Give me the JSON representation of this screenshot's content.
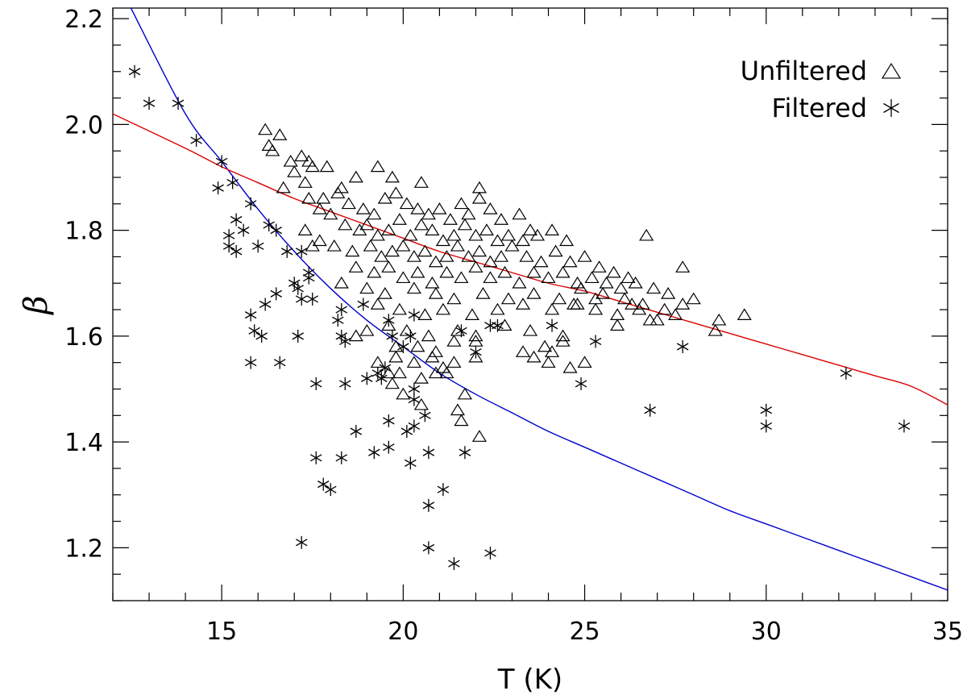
{
  "chart_data": {
    "type": "scatter",
    "xlabel": "T (K)",
    "ylabel": "β",
    "xlim": [
      12,
      35
    ],
    "ylim": [
      1.1,
      2.22
    ],
    "xticks": [
      15,
      20,
      25,
      30,
      35
    ],
    "xtick_labels": [
      "15",
      "20",
      "25",
      "30",
      "35"
    ],
    "yticks": [
      1.2,
      1.4,
      1.6,
      1.8,
      2.0,
      2.2
    ],
    "ytick_labels": [
      "1.2",
      "1.4",
      "1.6",
      "1.8",
      "2.0",
      "2.2"
    ],
    "x_minor_step": 1,
    "y_minor_step": 0.05,
    "grid": false,
    "legend": {
      "position": "top-right",
      "entries": [
        {
          "label": "Unfiltered",
          "marker": "triangle"
        },
        {
          "label": "Filtered",
          "marker": "asterisk"
        }
      ]
    },
    "series": [
      {
        "label": "Unfiltered",
        "marker": "triangle",
        "color": "#000000",
        "points": [
          [
            16.2,
            1.99
          ],
          [
            16.6,
            1.98
          ],
          [
            16.3,
            1.96
          ],
          [
            16.4,
            1.95
          ],
          [
            16.9,
            1.93
          ],
          [
            17.2,
            1.94
          ],
          [
            17.4,
            1.93
          ],
          [
            17.0,
            1.91
          ],
          [
            17.5,
            1.92
          ],
          [
            17.9,
            1.92
          ],
          [
            18.3,
            1.88
          ],
          [
            18.7,
            1.9
          ],
          [
            19.3,
            1.92
          ],
          [
            19.7,
            1.9
          ],
          [
            20.5,
            1.89
          ],
          [
            22.1,
            1.88
          ],
          [
            16.7,
            1.88
          ],
          [
            17.3,
            1.89
          ],
          [
            17.8,
            1.86
          ],
          [
            18.2,
            1.87
          ],
          [
            18.5,
            1.85
          ],
          [
            18.0,
            1.83
          ],
          [
            17.4,
            1.86
          ],
          [
            17.7,
            1.84
          ],
          [
            18.9,
            1.84
          ],
          [
            19.2,
            1.83
          ],
          [
            19.5,
            1.86
          ],
          [
            19.8,
            1.87
          ],
          [
            20.1,
            1.85
          ],
          [
            20.4,
            1.84
          ],
          [
            20.7,
            1.83
          ],
          [
            21.0,
            1.84
          ],
          [
            21.3,
            1.82
          ],
          [
            21.6,
            1.85
          ],
          [
            21.8,
            1.83
          ],
          [
            22.1,
            1.86
          ],
          [
            22.4,
            1.84
          ],
          [
            22.7,
            1.82
          ],
          [
            23.2,
            1.83
          ],
          [
            23.5,
            1.8
          ],
          [
            18.4,
            1.81
          ],
          [
            18.8,
            1.8
          ],
          [
            19.0,
            1.81
          ],
          [
            19.3,
            1.79
          ],
          [
            19.6,
            1.8
          ],
          [
            19.9,
            1.82
          ],
          [
            20.2,
            1.79
          ],
          [
            20.5,
            1.81
          ],
          [
            20.8,
            1.8
          ],
          [
            21.1,
            1.78
          ],
          [
            21.4,
            1.79
          ],
          [
            21.7,
            1.81
          ],
          [
            22.0,
            1.79
          ],
          [
            22.3,
            1.8
          ],
          [
            22.6,
            1.78
          ],
          [
            22.9,
            1.79
          ],
          [
            23.3,
            1.78
          ],
          [
            23.7,
            1.79
          ],
          [
            24.1,
            1.8
          ],
          [
            24.5,
            1.78
          ],
          [
            17.3,
            1.8
          ],
          [
            17.7,
            1.78
          ],
          [
            18.1,
            1.77
          ],
          [
            17.5,
            1.77
          ],
          [
            18.6,
            1.76
          ],
          [
            19.1,
            1.77
          ],
          [
            19.4,
            1.75
          ],
          [
            19.7,
            1.76
          ],
          [
            20.0,
            1.77
          ],
          [
            20.3,
            1.75
          ],
          [
            20.6,
            1.76
          ],
          [
            20.9,
            1.74
          ],
          [
            21.2,
            1.75
          ],
          [
            21.5,
            1.77
          ],
          [
            21.8,
            1.75
          ],
          [
            22.1,
            1.76
          ],
          [
            22.4,
            1.74
          ],
          [
            22.7,
            1.75
          ],
          [
            23.0,
            1.77
          ],
          [
            23.4,
            1.75
          ],
          [
            23.8,
            1.74
          ],
          [
            24.2,
            1.76
          ],
          [
            24.6,
            1.74
          ],
          [
            25.0,
            1.75
          ],
          [
            25.4,
            1.73
          ],
          [
            25.8,
            1.72
          ],
          [
            26.2,
            1.71
          ],
          [
            26.7,
            1.79
          ],
          [
            18.7,
            1.73
          ],
          [
            19.2,
            1.72
          ],
          [
            19.6,
            1.73
          ],
          [
            20.0,
            1.71
          ],
          [
            20.4,
            1.72
          ],
          [
            20.8,
            1.7
          ],
          [
            21.2,
            1.72
          ],
          [
            21.6,
            1.71
          ],
          [
            22.0,
            1.73
          ],
          [
            22.4,
            1.71
          ],
          [
            22.8,
            1.72
          ],
          [
            23.2,
            1.7
          ],
          [
            23.6,
            1.72
          ],
          [
            24.0,
            1.71
          ],
          [
            24.4,
            1.72
          ],
          [
            24.8,
            1.7
          ],
          [
            25.2,
            1.71
          ],
          [
            25.6,
            1.7
          ],
          [
            26.0,
            1.69
          ],
          [
            26.4,
            1.7
          ],
          [
            26.9,
            1.69
          ],
          [
            27.3,
            1.68
          ],
          [
            27.7,
            1.73
          ],
          [
            18.3,
            1.7
          ],
          [
            19.0,
            1.69
          ],
          [
            19.5,
            1.68
          ],
          [
            20.3,
            1.69
          ],
          [
            20.9,
            1.68
          ],
          [
            21.4,
            1.67
          ],
          [
            22.2,
            1.68
          ],
          [
            22.9,
            1.67
          ],
          [
            23.6,
            1.68
          ],
          [
            24.3,
            1.67
          ],
          [
            24.9,
            1.69
          ],
          [
            25.5,
            1.68
          ],
          [
            26.1,
            1.67
          ],
          [
            26.6,
            1.66
          ],
          [
            27.2,
            1.65
          ],
          [
            27.7,
            1.66
          ],
          [
            28.0,
            1.67
          ],
          [
            19.3,
            1.66
          ],
          [
            19.9,
            1.65
          ],
          [
            20.6,
            1.64
          ],
          [
            21.1,
            1.65
          ],
          [
            21.9,
            1.64
          ],
          [
            22.6,
            1.65
          ],
          [
            23.3,
            1.66
          ],
          [
            24.1,
            1.65
          ],
          [
            24.7,
            1.66
          ],
          [
            25.3,
            1.65
          ],
          [
            25.9,
            1.64
          ],
          [
            26.5,
            1.65
          ],
          [
            27.0,
            1.63
          ],
          [
            27.5,
            1.64
          ],
          [
            28.7,
            1.63
          ],
          [
            29.4,
            1.64
          ],
          [
            19.6,
            1.62
          ],
          [
            20.1,
            1.61
          ],
          [
            20.7,
            1.6
          ],
          [
            21.5,
            1.61
          ],
          [
            22.0,
            1.6
          ],
          [
            22.8,
            1.62
          ],
          [
            23.5,
            1.61
          ],
          [
            24.4,
            1.6
          ],
          [
            25.9,
            1.62
          ],
          [
            26.8,
            1.63
          ],
          [
            28.6,
            1.61
          ],
          [
            18.7,
            1.6
          ],
          [
            19.0,
            1.61
          ],
          [
            19.8,
            1.58
          ],
          [
            20.4,
            1.58
          ],
          [
            20.9,
            1.57
          ],
          [
            21.4,
            1.59
          ],
          [
            22.0,
            1.59
          ],
          [
            23.3,
            1.57
          ],
          [
            23.9,
            1.58
          ],
          [
            24.1,
            1.57
          ],
          [
            24.4,
            1.59
          ],
          [
            19.8,
            1.56
          ],
          [
            20.3,
            1.55
          ],
          [
            20.8,
            1.56
          ],
          [
            21.4,
            1.55
          ],
          [
            22.0,
            1.56
          ],
          [
            23.6,
            1.56
          ],
          [
            24.0,
            1.55
          ],
          [
            24.6,
            1.54
          ],
          [
            25.0,
            1.55
          ],
          [
            19.9,
            1.53
          ],
          [
            20.5,
            1.52
          ],
          [
            20.9,
            1.53
          ],
          [
            21.2,
            1.53
          ],
          [
            21.7,
            1.49
          ],
          [
            20.5,
            1.47
          ],
          [
            21.5,
            1.46
          ],
          [
            22.1,
            1.41
          ],
          [
            21.6,
            1.44
          ],
          [
            19.3,
            1.55
          ],
          [
            19.6,
            1.53
          ],
          [
            19.7,
            1.51
          ],
          [
            21.1,
            1.54
          ],
          [
            20.0,
            1.49
          ],
          [
            25.3,
            1.67
          ],
          [
            26.3,
            1.66
          ],
          [
            24.8,
            1.66
          ]
        ]
      },
      {
        "label": "Filtered",
        "marker": "asterisk",
        "color": "#000000",
        "points": [
          [
            12.6,
            2.1
          ],
          [
            13.0,
            2.04
          ],
          [
            13.8,
            2.04
          ],
          [
            14.3,
            1.97
          ],
          [
            15.0,
            1.93
          ],
          [
            14.9,
            1.88
          ],
          [
            15.3,
            1.89
          ],
          [
            15.8,
            1.85
          ],
          [
            15.4,
            1.82
          ],
          [
            15.6,
            1.8
          ],
          [
            15.2,
            1.79
          ],
          [
            15.2,
            1.77
          ],
          [
            15.4,
            1.76
          ],
          [
            16.0,
            1.77
          ],
          [
            16.3,
            1.81
          ],
          [
            16.5,
            1.8
          ],
          [
            16.8,
            1.76
          ],
          [
            17.2,
            1.76
          ],
          [
            17.4,
            1.72
          ],
          [
            17.4,
            1.71
          ],
          [
            17.0,
            1.7
          ],
          [
            17.1,
            1.69
          ],
          [
            17.2,
            1.67
          ],
          [
            17.5,
            1.67
          ],
          [
            16.5,
            1.68
          ],
          [
            16.2,
            1.66
          ],
          [
            15.8,
            1.64
          ],
          [
            15.9,
            1.61
          ],
          [
            16.1,
            1.6
          ],
          [
            15.8,
            1.55
          ],
          [
            16.6,
            1.55
          ],
          [
            17.1,
            1.6
          ],
          [
            18.3,
            1.65
          ],
          [
            18.2,
            1.63
          ],
          [
            18.9,
            1.66
          ],
          [
            18.3,
            1.6
          ],
          [
            18.4,
            1.59
          ],
          [
            17.6,
            1.51
          ],
          [
            18.4,
            1.51
          ],
          [
            18.7,
            1.42
          ],
          [
            19.0,
            1.52
          ],
          [
            19.3,
            1.53
          ],
          [
            19.4,
            1.52
          ],
          [
            19.5,
            1.54
          ],
          [
            19.6,
            1.63
          ],
          [
            19.7,
            1.6
          ],
          [
            20.0,
            1.58
          ],
          [
            20.2,
            1.6
          ],
          [
            20.3,
            1.64
          ],
          [
            19.6,
            1.44
          ],
          [
            20.1,
            1.42
          ],
          [
            20.3,
            1.43
          ],
          [
            20.3,
            1.5
          ],
          [
            20.3,
            1.48
          ],
          [
            20.6,
            1.45
          ],
          [
            19.2,
            1.38
          ],
          [
            19.6,
            1.39
          ],
          [
            20.2,
            1.36
          ],
          [
            20.7,
            1.38
          ],
          [
            21.6,
            1.61
          ],
          [
            21.7,
            1.38
          ],
          [
            22.0,
            1.57
          ],
          [
            22.4,
            1.62
          ],
          [
            22.6,
            1.62
          ],
          [
            24.1,
            1.62
          ],
          [
            24.9,
            1.51
          ],
          [
            25.3,
            1.59
          ],
          [
            17.6,
            1.37
          ],
          [
            18.3,
            1.37
          ],
          [
            17.8,
            1.32
          ],
          [
            18.0,
            1.31
          ],
          [
            17.2,
            1.21
          ],
          [
            20.7,
            1.28
          ],
          [
            21.1,
            1.31
          ],
          [
            20.7,
            1.2
          ],
          [
            21.4,
            1.17
          ],
          [
            22.4,
            1.19
          ],
          [
            26.8,
            1.46
          ],
          [
            27.7,
            1.58
          ],
          [
            30.0,
            1.46
          ],
          [
            30.0,
            1.43
          ],
          [
            32.2,
            1.53
          ],
          [
            33.8,
            1.43
          ]
        ]
      }
    ],
    "fits": [
      {
        "color": "#0000cc",
        "x": [
          12.5,
          14,
          15,
          16,
          17,
          18,
          19,
          20,
          21,
          22,
          23,
          24,
          25,
          26,
          27,
          28,
          29,
          30,
          31,
          32,
          33,
          34,
          35
        ],
        "y": [
          2.22,
          2.02,
          1.93,
          1.84,
          1.76,
          1.69,
          1.63,
          1.58,
          1.53,
          1.49,
          1.455,
          1.42,
          1.39,
          1.36,
          1.33,
          1.3,
          1.27,
          1.245,
          1.22,
          1.195,
          1.17,
          1.145,
          1.12
        ]
      },
      {
        "color": "#dd0000",
        "x": [
          12,
          14,
          15,
          16,
          17,
          18,
          19,
          20,
          21,
          22,
          23,
          24,
          25,
          26,
          27,
          28,
          29,
          30,
          31,
          32,
          33,
          34,
          35
        ],
        "y": [
          2.02,
          1.955,
          1.92,
          1.89,
          1.86,
          1.835,
          1.81,
          1.785,
          1.76,
          1.74,
          1.72,
          1.7,
          1.685,
          1.665,
          1.645,
          1.625,
          1.605,
          1.585,
          1.565,
          1.545,
          1.525,
          1.505,
          1.47
        ]
      }
    ]
  }
}
